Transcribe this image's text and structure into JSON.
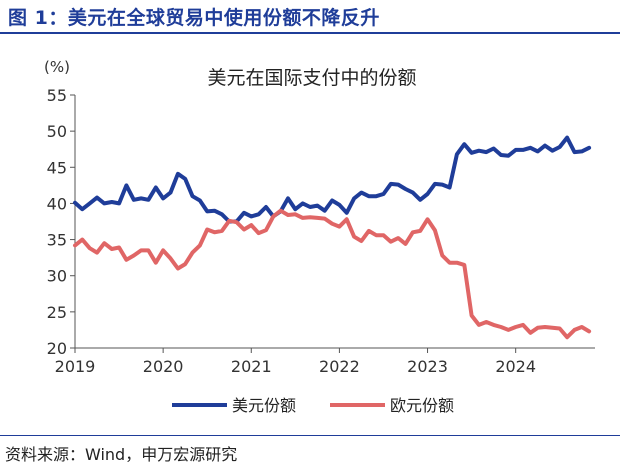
{
  "figure": {
    "title": "图 1：美元在全球贸易中使用份额不降反升",
    "source": "资料来源：Wind，申万宏源研究"
  },
  "colors": {
    "usd": "#1f3d99",
    "eur": "#e06666",
    "axis": "#555555",
    "title": "#1f3d99"
  },
  "chart_data": {
    "type": "line",
    "title": "美元在国际支付中的份额",
    "ylabel": "(%)",
    "xlabel": "",
    "xlim": [
      2019.0,
      2024.9
    ],
    "ylim": [
      20,
      55
    ],
    "yticks": [
      20,
      25,
      30,
      35,
      40,
      45,
      50,
      55
    ],
    "xticks": [
      2019,
      2020,
      2021,
      2022,
      2023,
      2024
    ],
    "grid": false,
    "legend_position": "bottom",
    "series": [
      {
        "name": "美元份额",
        "color": "#1f3d99",
        "x": [
          2019.0,
          2019.083,
          2019.167,
          2019.25,
          2019.333,
          2019.417,
          2019.5,
          2019.583,
          2019.667,
          2019.75,
          2019.833,
          2019.917,
          2020.0,
          2020.083,
          2020.167,
          2020.25,
          2020.333,
          2020.417,
          2020.5,
          2020.583,
          2020.667,
          2020.75,
          2020.833,
          2020.917,
          2021.0,
          2021.083,
          2021.167,
          2021.25,
          2021.333,
          2021.417,
          2021.5,
          2021.583,
          2021.667,
          2021.75,
          2021.833,
          2021.917,
          2022.0,
          2022.083,
          2022.167,
          2022.25,
          2022.333,
          2022.417,
          2022.5,
          2022.583,
          2022.667,
          2022.75,
          2022.833,
          2022.917,
          2023.0,
          2023.083,
          2023.167,
          2023.25,
          2023.333,
          2023.417,
          2023.5,
          2023.583,
          2023.667,
          2023.75,
          2023.833,
          2023.917,
          2024.0,
          2024.083,
          2024.167,
          2024.25,
          2024.333,
          2024.417,
          2024.5,
          2024.583,
          2024.667,
          2024.75,
          2024.833
        ],
        "values": [
          40.1,
          39.2,
          40.0,
          40.8,
          40.0,
          40.2,
          40.0,
          42.5,
          40.5,
          40.7,
          40.5,
          42.2,
          40.7,
          41.5,
          44.1,
          43.4,
          41.0,
          40.4,
          38.9,
          39.0,
          38.5,
          37.5,
          37.5,
          38.7,
          38.2,
          38.5,
          39.5,
          38.2,
          38.9,
          40.7,
          39.2,
          40.0,
          39.5,
          39.7,
          39.0,
          40.4,
          39.8,
          38.7,
          40.7,
          41.5,
          41.0,
          41.0,
          41.3,
          42.7,
          42.6,
          42.0,
          41.5,
          40.5,
          41.3,
          42.7,
          42.6,
          42.2,
          46.8,
          48.2,
          47.0,
          47.3,
          47.1,
          47.6,
          46.7,
          46.6,
          47.4,
          47.4,
          47.7,
          47.2,
          48.0,
          47.3,
          47.8,
          49.1,
          47.1,
          47.2,
          47.7
        ]
      },
      {
        "name": "欧元份额",
        "color": "#e06666",
        "x": [
          2019.0,
          2019.083,
          2019.167,
          2019.25,
          2019.333,
          2019.417,
          2019.5,
          2019.583,
          2019.667,
          2019.75,
          2019.833,
          2019.917,
          2020.0,
          2020.083,
          2020.167,
          2020.25,
          2020.333,
          2020.417,
          2020.5,
          2020.583,
          2020.667,
          2020.75,
          2020.833,
          2020.917,
          2021.0,
          2021.083,
          2021.167,
          2021.25,
          2021.333,
          2021.417,
          2021.5,
          2021.583,
          2021.667,
          2021.75,
          2021.833,
          2021.917,
          2022.0,
          2022.083,
          2022.167,
          2022.25,
          2022.333,
          2022.417,
          2022.5,
          2022.583,
          2022.667,
          2022.75,
          2022.833,
          2022.917,
          2023.0,
          2023.083,
          2023.167,
          2023.25,
          2023.333,
          2023.417,
          2023.5,
          2023.583,
          2023.667,
          2023.75,
          2023.833,
          2023.917,
          2024.0,
          2024.083,
          2024.167,
          2024.25,
          2024.333,
          2024.417,
          2024.5,
          2024.583,
          2024.667,
          2024.75,
          2024.833
        ],
        "values": [
          34.2,
          35.0,
          33.8,
          33.2,
          34.5,
          33.7,
          33.9,
          32.2,
          32.8,
          33.5,
          33.5,
          31.8,
          33.5,
          32.4,
          31.0,
          31.6,
          33.2,
          34.2,
          36.4,
          36.0,
          36.2,
          37.6,
          37.4,
          36.4,
          37.0,
          35.9,
          36.3,
          38.2,
          39.0,
          38.4,
          38.5,
          38.0,
          38.1,
          38.0,
          37.9,
          37.2,
          36.8,
          37.8,
          35.4,
          34.8,
          36.2,
          35.6,
          35.6,
          34.7,
          35.2,
          34.4,
          36.0,
          36.2,
          37.8,
          36.3,
          32.8,
          31.8,
          31.8,
          31.5,
          24.5,
          23.2,
          23.6,
          23.2,
          22.9,
          22.5,
          22.9,
          23.2,
          22.1,
          22.8,
          22.9,
          22.8,
          22.7,
          21.5,
          22.5,
          22.9,
          22.3
        ]
      }
    ]
  }
}
